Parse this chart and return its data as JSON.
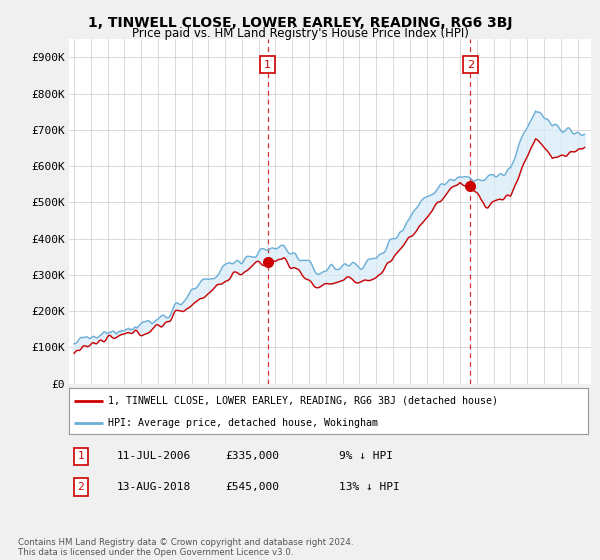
{
  "title": "1, TINWELL CLOSE, LOWER EARLEY, READING, RG6 3BJ",
  "subtitle": "Price paid vs. HM Land Registry's House Price Index (HPI)",
  "ylabel_ticks": [
    "£0",
    "£100K",
    "£200K",
    "£300K",
    "£400K",
    "£500K",
    "£600K",
    "£700K",
    "£800K",
    "£900K"
  ],
  "ytick_values": [
    0,
    100000,
    200000,
    300000,
    400000,
    500000,
    600000,
    700000,
    800000,
    900000
  ],
  "ylim": [
    0,
    950000
  ],
  "hpi_color": "#6baed6",
  "hpi_fill_color": "#d6eaf8",
  "price_color": "#cc0000",
  "dashed_color": "#cc0000",
  "marker1_date": 2006.54,
  "marker1_price": 335000,
  "marker1_label": "11-JUL-2006",
  "marker1_value": "£335,000",
  "marker1_note": "9% ↓ HPI",
  "marker2_date": 2018.62,
  "marker2_price": 545000,
  "marker2_label": "13-AUG-2018",
  "marker2_value": "£545,000",
  "marker2_note": "13% ↓ HPI",
  "legend_line1": "1, TINWELL CLOSE, LOWER EARLEY, READING, RG6 3BJ (detached house)",
  "legend_line2": "HPI: Average price, detached house, Wokingham",
  "footnote": "Contains HM Land Registry data © Crown copyright and database right 2024.\nThis data is licensed under the Open Government Licence v3.0.",
  "background_color": "#f0f0f0",
  "plot_background": "#ffffff",
  "grid_color": "#cccccc"
}
